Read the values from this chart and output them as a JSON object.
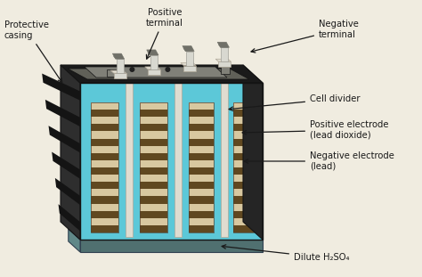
{
  "bg_color": "#f0ece0",
  "labels": {
    "protective_casing": "Protective\ncasing",
    "positive_terminal": "Positive\nterminal",
    "negative_terminal": "Negative\nterminal",
    "cell_divider": "Cell divider",
    "positive_electrode": "Positive electrode\n(lead dioxide)",
    "negative_electrode": "Negative electrode\n(lead)",
    "dilute_h2so4": "Dilute H₂SO₄"
  },
  "colors": {
    "casing_top_dark": "#1a1a1a",
    "casing_top_mid": "#282828",
    "casing_top_light": "#3a3a3a",
    "casing_left": "#2e2e2e",
    "casing_left_rib": "#1a1a1a",
    "casing_right": "#252525",
    "casing_rim": "#555555",
    "liquid_front": "#5cc8d8",
    "liquid_mid": "#4ab8c8",
    "liquid_right": "#3aa8b8",
    "liquid_bottom": "#3898a8",
    "tray_dark": "#507070",
    "tray_light": "#608888",
    "electrode_tan": "#c8b890",
    "electrode_brown": "#806040",
    "electrode_stripe_dark": "#604820",
    "electrode_stripe_light": "#d8c8a0",
    "divider_white": "#e0dcd0",
    "divider_gray": "#b0a898",
    "terminal_white": "#d8d8d0",
    "terminal_gray": "#a0a098",
    "terminal_dark": "#707068",
    "top_panel_gray": "#606058",
    "top_panel_light": "#808078",
    "top_slot_dark": "#202020",
    "casing_groove": "#141414",
    "arrow_color": "#1a1a1a",
    "text_color": "#1a1a1a"
  }
}
